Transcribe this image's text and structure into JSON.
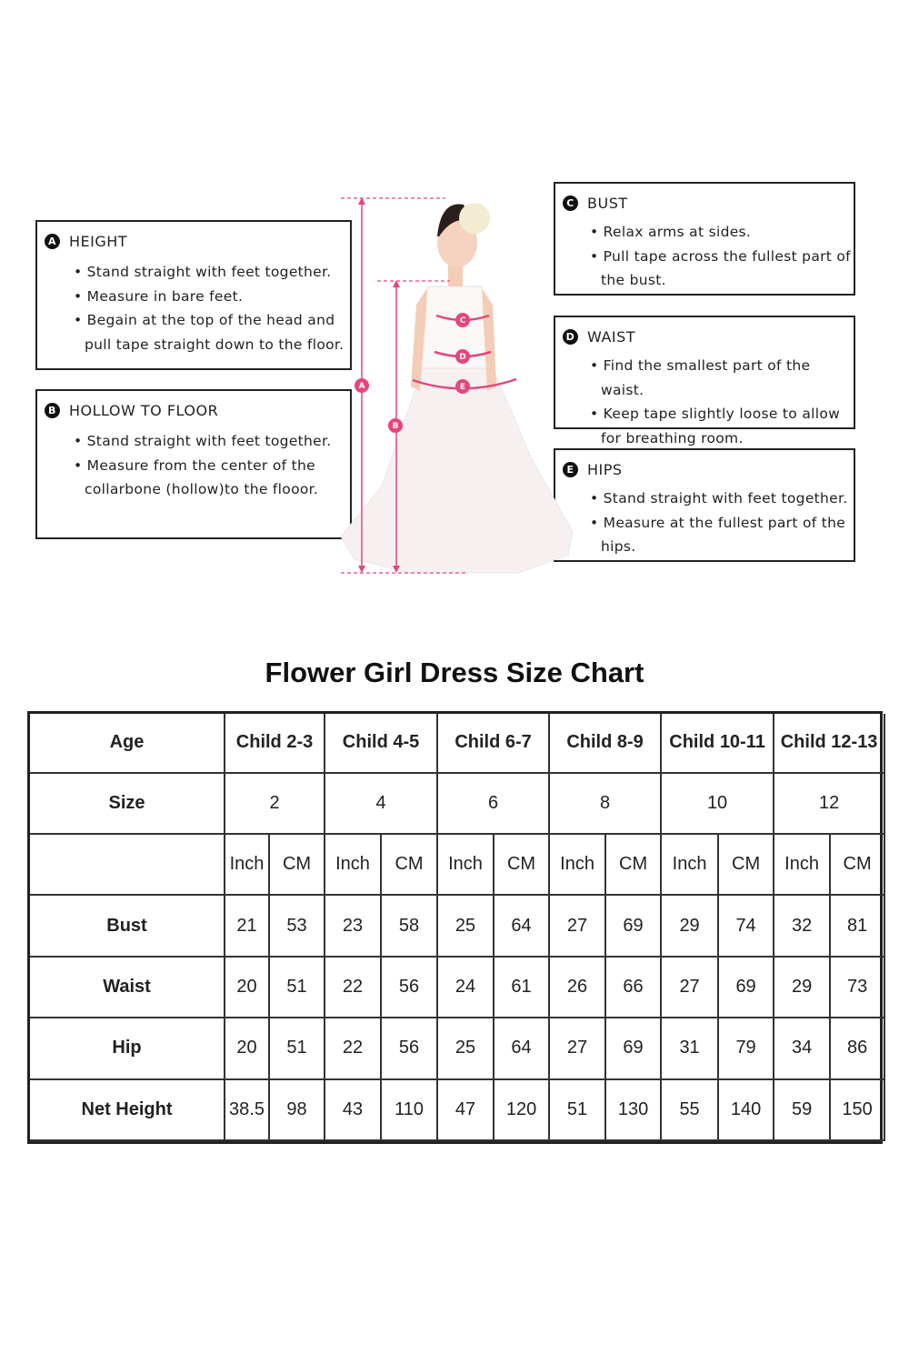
{
  "accent_color": "#e6457e",
  "guide": {
    "height": {
      "letter": "A",
      "title": "HEIGHT",
      "items": [
        "Stand straight with feet together.",
        "Measure in bare feet.",
        "Begain at the top of the head and pull tape straight down to the floor."
      ]
    },
    "hollow": {
      "letter": "B",
      "title": "HOLLOW TO FLOOR",
      "items": [
        "Stand straight with feet together.",
        "Measure from the center of the collarbone (hollow)to the flooor."
      ]
    },
    "bust": {
      "letter": "C",
      "title": "BUST",
      "items": [
        "Relax arms at sides.",
        "Pull tape across the fullest part of the bust."
      ]
    },
    "waist": {
      "letter": "D",
      "title": "WAIST",
      "items": [
        "Find the smallest part of the waist.",
        "Keep tape slightly loose to allow for breathing room."
      ]
    },
    "hips": {
      "letter": "E",
      "title": "HIPS",
      "items": [
        "Stand straight with feet together.",
        "Measure at the fullest part of the hips."
      ]
    }
  },
  "chart_data": {
    "type": "table",
    "title": "Flower Girl Dress Size Chart",
    "age_label": "Age",
    "size_label": "Size",
    "ages": [
      "Child 2-3",
      "Child 4-5",
      "Child 6-7",
      "Child 8-9",
      "Child 10-11",
      "Child 12-13"
    ],
    "sizes": [
      "2",
      "4",
      "6",
      "8",
      "10",
      "12"
    ],
    "units": [
      "Inch",
      "CM"
    ],
    "rows": [
      {
        "label": "Bust",
        "values": [
          "21",
          "53",
          "23",
          "58",
          "25",
          "64",
          "27",
          "69",
          "29",
          "74",
          "32",
          "81"
        ]
      },
      {
        "label": "Waist",
        "values": [
          "20",
          "51",
          "22",
          "56",
          "24",
          "61",
          "26",
          "66",
          "27",
          "69",
          "29",
          "73"
        ]
      },
      {
        "label": "Hip",
        "values": [
          "20",
          "51",
          "22",
          "56",
          "25",
          "64",
          "27",
          "69",
          "31",
          "79",
          "34",
          "86"
        ]
      },
      {
        "label": "Net Height",
        "values": [
          "38.5",
          "98",
          "43",
          "110",
          "47",
          "120",
          "51",
          "130",
          "55",
          "140",
          "59",
          "150"
        ]
      }
    ]
  }
}
